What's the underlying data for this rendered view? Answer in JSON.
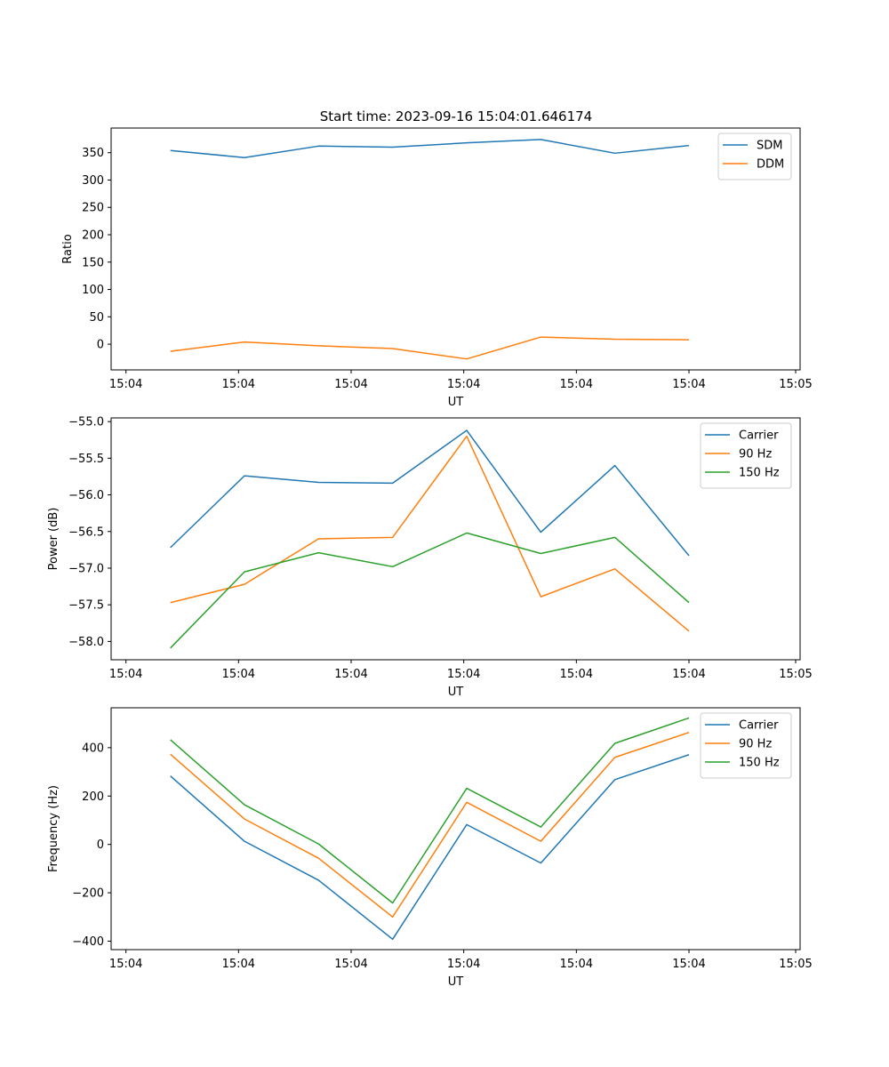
{
  "figure_title": "Start time: 2023-09-16 15:04:01.646174",
  "colors": {
    "blue": "#1f77b4",
    "orange": "#ff7f0e",
    "green": "#2ca02c"
  },
  "chart_data": [
    {
      "type": "line",
      "title": "Start time: 2023-09-16 15:04:01.646174",
      "xlabel": "UT",
      "ylabel": "Ratio",
      "x": [
        1,
        2,
        3,
        4,
        5,
        6,
        7,
        8
      ],
      "xlim": [
        0.2,
        9.5
      ],
      "xticks": [
        0.4,
        1.92,
        3.44,
        4.96,
        6.48,
        8.0,
        9.44
      ],
      "xtick_labels": [
        "15:04",
        "15:04",
        "15:04",
        "15:04",
        "15:04",
        "15:04",
        "15:05"
      ],
      "ylim": [
        -47,
        395
      ],
      "yticks": [
        0,
        50,
        100,
        150,
        200,
        250,
        300,
        350
      ],
      "ytick_labels": [
        "0",
        "50",
        "100",
        "150",
        "200",
        "250",
        "300",
        "350"
      ],
      "legend": "top-right",
      "series": [
        {
          "name": "SDM",
          "color": "#1f77b4",
          "values": [
            354,
            341,
            362,
            360,
            368,
            374,
            349,
            363
          ]
        },
        {
          "name": "DDM",
          "color": "#ff7f0e",
          "values": [
            -13,
            4,
            -3,
            -8,
            -27,
            13,
            9,
            8
          ]
        }
      ]
    },
    {
      "type": "line",
      "title": "",
      "xlabel": "UT",
      "ylabel": "Power (dB)",
      "x": [
        1,
        2,
        3,
        4,
        5,
        6,
        7,
        8
      ],
      "xlim": [
        0.2,
        9.5
      ],
      "xticks": [
        0.4,
        1.92,
        3.44,
        4.96,
        6.48,
        8.0,
        9.44
      ],
      "xtick_labels": [
        "15:04",
        "15:04",
        "15:04",
        "15:04",
        "15:04",
        "15:04",
        "15:05"
      ],
      "ylim": [
        -58.25,
        -54.95
      ],
      "yticks": [
        -58.0,
        -57.5,
        -57.0,
        -56.5,
        -56.0,
        -55.5,
        -55.0
      ],
      "ytick_labels": [
        "−58.0",
        "−57.5",
        "−57.0",
        "−56.5",
        "−56.0",
        "−55.5",
        "−55.0"
      ],
      "legend": "top-right",
      "series": [
        {
          "name": "Carrier",
          "color": "#1f77b4",
          "values": [
            -56.72,
            -55.74,
            -55.83,
            -55.84,
            -55.12,
            -56.51,
            -55.6,
            -56.83
          ]
        },
        {
          "name": "90 Hz",
          "color": "#ff7f0e",
          "values": [
            -57.47,
            -57.22,
            -56.6,
            -56.58,
            -55.2,
            -57.39,
            -57.01,
            -57.86
          ]
        },
        {
          "name": "150 Hz",
          "color": "#2ca02c",
          "values": [
            -58.09,
            -57.05,
            -56.79,
            -56.98,
            -56.52,
            -56.8,
            -56.58,
            -57.47
          ]
        }
      ]
    },
    {
      "type": "line",
      "title": "",
      "xlabel": "UT",
      "ylabel": "Frequency (Hz)",
      "x": [
        1,
        2,
        3,
        4,
        5,
        6,
        7,
        8
      ],
      "xlim": [
        0.2,
        9.5
      ],
      "xticks": [
        0.4,
        1.92,
        3.44,
        4.96,
        6.48,
        8.0,
        9.44
      ],
      "xtick_labels": [
        "15:04",
        "15:04",
        "15:04",
        "15:04",
        "15:04",
        "15:04",
        "15:05"
      ],
      "ylim": [
        -435,
        565
      ],
      "yticks": [
        -400,
        -200,
        0,
        200,
        400
      ],
      "ytick_labels": [
        "−400",
        "−200",
        "0",
        "200",
        "400"
      ],
      "legend": "top-right",
      "series": [
        {
          "name": "Carrier",
          "color": "#1f77b4",
          "values": [
            283,
            13,
            -148,
            -392,
            82,
            -77,
            268,
            371
          ]
        },
        {
          "name": "90 Hz",
          "color": "#ff7f0e",
          "values": [
            373,
            105,
            -57,
            -300,
            174,
            13,
            360,
            463
          ]
        },
        {
          "name": "150 Hz",
          "color": "#2ca02c",
          "values": [
            433,
            164,
            2,
            -242,
            232,
            72,
            418,
            523
          ]
        }
      ]
    }
  ]
}
